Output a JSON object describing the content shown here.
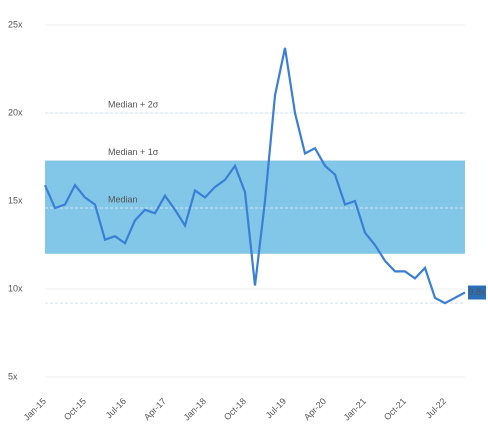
{
  "chart_data": {
    "type": "line",
    "categories": [
      "Jan-15",
      null,
      null,
      null,
      "Oct-15",
      null,
      null,
      null,
      "Jul-16",
      null,
      null,
      null,
      "Apr-17",
      null,
      null,
      null,
      "Jan-18",
      null,
      null,
      null,
      "Oct-18",
      null,
      null,
      null,
      "Jul-19",
      null,
      null,
      null,
      "Apr-20",
      null,
      null,
      null,
      "Jan-21",
      null,
      null,
      null,
      "Oct-21",
      null,
      null,
      null,
      "Jul-22",
      null,
      null
    ],
    "series": [
      {
        "color": "#3a7fd5",
        "values": [
          15.9,
          14.6,
          14.8,
          15.9,
          15.2,
          14.8,
          12.8,
          13.0,
          12.6,
          13.9,
          14.5,
          14.3,
          15.3,
          14.5,
          13.6,
          15.6,
          15.2,
          15.8,
          16.2,
          17.0,
          15.5,
          10.2,
          15.0,
          21.0,
          23.7,
          20.0,
          17.7,
          18.0,
          17.0,
          16.5,
          14.8,
          15.0,
          13.2,
          12.5,
          11.6,
          11.0,
          11.0,
          10.6,
          11.2,
          9.5,
          9.2,
          9.5,
          9.8
        ],
        "value_labels": [
          null,
          null,
          null,
          null,
          null,
          null,
          null,
          null,
          null,
          null,
          null,
          null,
          null,
          null,
          null,
          null,
          null,
          null,
          null,
          null,
          null,
          null,
          null,
          null,
          null,
          null,
          null,
          null,
          null,
          null,
          null,
          null,
          null,
          null,
          null,
          null,
          null,
          null,
          null,
          null,
          null,
          null,
          "9.8x"
        ]
      }
    ],
    "ylim": [
      5,
      25
    ],
    "yticks": [
      {
        "value": 25,
        "label": "25x"
      },
      {
        "value": 20,
        "label": "20x"
      },
      {
        "value": 15,
        "label": "15x"
      },
      {
        "value": 10,
        "label": "10x"
      },
      {
        "value": 5,
        "label": "5x"
      }
    ],
    "sigma_band": [
      12.0,
      17.3
    ],
    "band_color": "#5ab4e0",
    "reference_lines": [
      {
        "label": "Median + 2σ",
        "value": 20.0
      },
      {
        "label": "Median + 1σ",
        "value": 17.3
      },
      {
        "label": "Median",
        "value": 14.6
      },
      {
        "label": null,
        "value": 9.2
      }
    ]
  }
}
